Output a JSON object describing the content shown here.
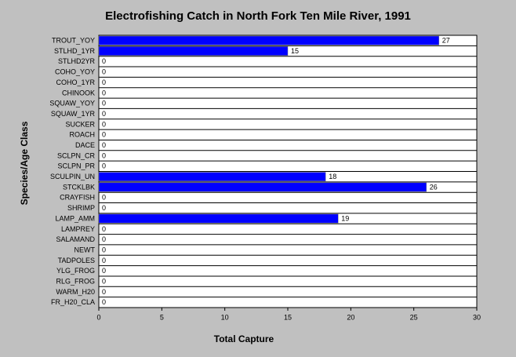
{
  "chart_data": {
    "type": "bar",
    "orientation": "horizontal",
    "title": "Electrofishing Catch in North Fork Ten Mile River, 1991",
    "x_label": "Total Capture",
    "y_label": "Species/Age Class",
    "categories": [
      "TROUT_YOY",
      "STLHD_1YR",
      "STLHD2YR",
      "COHO_YOY",
      "COHO_1YR",
      "CHINOOK",
      "SQUAW_YOY",
      "SQUAW_1YR",
      "SUCKER",
      "ROACH",
      "DACE",
      "SCLPN_CR",
      "SCLPN_PR",
      "SCULPIN_UN",
      "STCKLBK",
      "CRAYFISH",
      "SHRIMP",
      "LAMP_AMM",
      "LAMPREY",
      "SALAMAND",
      "NEWT",
      "TADPOLES",
      "YLG_FROG",
      "RLG_FROG",
      "WARM_H20",
      "FR_H20_CLA"
    ],
    "values": [
      27,
      15,
      0,
      0,
      0,
      0,
      0,
      0,
      0,
      0,
      0,
      0,
      0,
      18,
      26,
      0,
      0,
      19,
      0,
      0,
      0,
      0,
      0,
      0,
      0,
      0
    ],
    "color": "#0000ff",
    "xlim": [
      0,
      30
    ],
    "xticks": [
      0,
      5,
      10,
      15,
      20,
      25,
      30
    ]
  }
}
